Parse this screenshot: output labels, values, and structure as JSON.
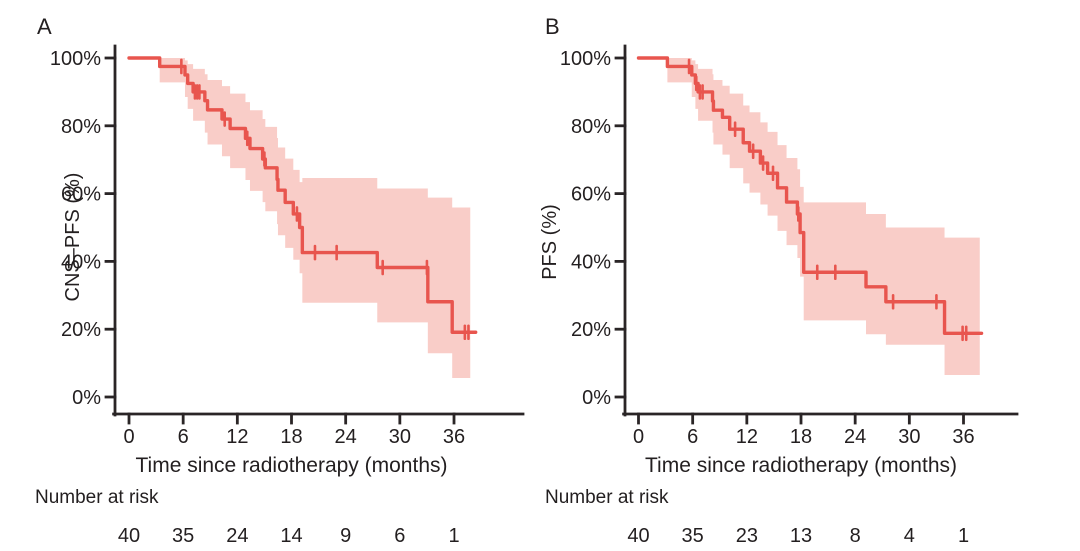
{
  "colors": {
    "curve": "#e8554e",
    "band": "#f9cdc8",
    "axis": "#2a2526",
    "text": "#231f20",
    "background": "#ffffff"
  },
  "chart_data": [
    {
      "type": "line",
      "subtype": "kaplan_meier_step",
      "panel_label": "A",
      "title": "",
      "xlabel": "Time since radiotherapy (months)",
      "ylabel": "CNS–PFS (%)",
      "xlim": [
        0,
        42
      ],
      "ylim": [
        0,
        100
      ],
      "grid": false,
      "legend": "none",
      "x_ticks": [
        0,
        6,
        12,
        18,
        24,
        30,
        36
      ],
      "x_tick_labels": [
        "0",
        "6",
        "12",
        "18",
        "24",
        "30",
        "36"
      ],
      "y_ticks": [
        0,
        20,
        40,
        60,
        80,
        100
      ],
      "y_tick_labels": [
        "0%",
        "20%",
        "40%",
        "60%",
        "80%",
        "100%"
      ],
      "series": [
        {
          "name": "CNS-PFS",
          "times": [
            0,
            3.4,
            6.2,
            6.5,
            7.1,
            8.4,
            8.7,
            10.3,
            11.2,
            12.9,
            13.4,
            14.8,
            15.1,
            16.4,
            16.5,
            17.3,
            18.2,
            18.9,
            19.2,
            27.5,
            33.1,
            35.8
          ],
          "values": [
            100,
            97.5,
            95,
            92.5,
            90,
            87.4,
            84.7,
            82,
            79.2,
            76.3,
            73.3,
            70.2,
            67.6,
            64.2,
            61,
            57.4,
            54,
            50,
            42.6,
            38.2,
            28.1,
            19.1
          ],
          "end_time": 38.4
        }
      ],
      "censors": {
        "times": [
          5.8,
          7.3,
          7.55,
          7.8,
          10.6,
          13.1,
          15.0,
          18.6,
          20.6,
          23.0,
          28.1,
          33.0,
          37.2,
          37.6
        ],
        "values": [
          97.5,
          90,
          90,
          90,
          82,
          76.3,
          70.2,
          54,
          42.6,
          42.6,
          38.2,
          38.2,
          19.1,
          19.1
        ]
      },
      "confidence_band": {
        "times": [
          3.4,
          6.2,
          6.5,
          7.1,
          8.4,
          8.7,
          10.3,
          11.2,
          12.9,
          13.4,
          14.8,
          15.1,
          16.4,
          16.5,
          17.3,
          18.2,
          18.9,
          19.2,
          27.5,
          33.1,
          35.8
        ],
        "upper": [
          100,
          99.3,
          98.2,
          96.8,
          95.2,
          93.5,
          91.7,
          89.5,
          87,
          84.6,
          82,
          79.7,
          76.4,
          73.6,
          70.3,
          67,
          63.4,
          64.6,
          61.5,
          58.8,
          55.9
        ],
        "lower": [
          92.8,
          88.5,
          85,
          81.5,
          78,
          74.5,
          71,
          67.5,
          64,
          60.8,
          57.5,
          54.8,
          51,
          47.7,
          44,
          40.5,
          36.5,
          27.8,
          22,
          12.9,
          5.6
        ],
        "end_time": 37.8
      },
      "risk_table": {
        "label": "Number at risk",
        "times": [
          0,
          6,
          12,
          18,
          24,
          30,
          36
        ],
        "counts": [
          "40",
          "35",
          "24",
          "14",
          "9",
          "6",
          "1"
        ]
      }
    },
    {
      "type": "line",
      "subtype": "kaplan_meier_step",
      "panel_label": "B",
      "title": "",
      "xlabel": "Time since radiotherapy (months)",
      "ylabel": "PFS (%)",
      "xlim": [
        0,
        42
      ],
      "ylim": [
        0,
        100
      ],
      "grid": false,
      "legend": "none",
      "x_ticks": [
        0,
        6,
        12,
        18,
        24,
        30,
        36
      ],
      "x_tick_labels": [
        "0",
        "6",
        "12",
        "18",
        "24",
        "30",
        "36"
      ],
      "y_ticks": [
        0,
        20,
        40,
        60,
        80,
        100
      ],
      "y_tick_labels": [
        "0%",
        "20%",
        "40%",
        "60%",
        "80%",
        "100%"
      ],
      "series": [
        {
          "name": "PFS",
          "times": [
            0,
            3.2,
            5.9,
            6.3,
            6.6,
            8.2,
            8.3,
            9.3,
            10.1,
            11.6,
            12.3,
            13.5,
            14.3,
            15.4,
            16.4,
            17.6,
            17.9,
            18.3,
            25.2,
            27.4,
            33.9
          ],
          "values": [
            100,
            97.5,
            95,
            92.5,
            90,
            87.3,
            84.6,
            82.5,
            79,
            75,
            72.5,
            69,
            66,
            61.7,
            57.5,
            54,
            48.5,
            36.8,
            32.5,
            28.1,
            18.8
          ],
          "end_time": 38.0
        }
      ],
      "censors": {
        "times": [
          5.6,
          6.4,
          6.8,
          7.1,
          10.7,
          12.7,
          13.8,
          14.9,
          17.7,
          19.8,
          21.8,
          28.2,
          33.0,
          35.9,
          36.3
        ],
        "values": [
          97.5,
          92.5,
          90,
          90,
          79,
          72.5,
          69,
          66,
          54,
          36.8,
          36.8,
          28.1,
          28.1,
          18.8,
          18.8
        ]
      },
      "confidence_band": {
        "times": [
          3.2,
          5.9,
          6.3,
          6.6,
          8.2,
          8.3,
          9.3,
          10.1,
          11.6,
          12.3,
          13.5,
          14.3,
          15.4,
          16.4,
          17.6,
          17.9,
          18.3,
          25.2,
          27.4,
          33.9
        ],
        "upper": [
          100,
          99.3,
          98.2,
          96.8,
          95.2,
          93.5,
          91.8,
          89.5,
          86,
          84,
          81,
          78.2,
          74.3,
          70.5,
          67.2,
          62,
          57.4,
          54,
          50,
          47
        ],
        "lower": [
          92.8,
          88.5,
          85,
          81.5,
          78,
          74.5,
          71.5,
          67.5,
          63,
          60.3,
          56.8,
          53.5,
          49,
          44.8,
          41,
          35.5,
          22.6,
          18.5,
          15.4,
          6.5
        ],
        "end_time": 37.8
      },
      "risk_table": {
        "label": "Number at risk",
        "times": [
          0,
          6,
          12,
          18,
          24,
          30,
          36
        ],
        "counts": [
          "40",
          "35",
          "23",
          "13",
          "8",
          "4",
          "1"
        ]
      }
    }
  ]
}
